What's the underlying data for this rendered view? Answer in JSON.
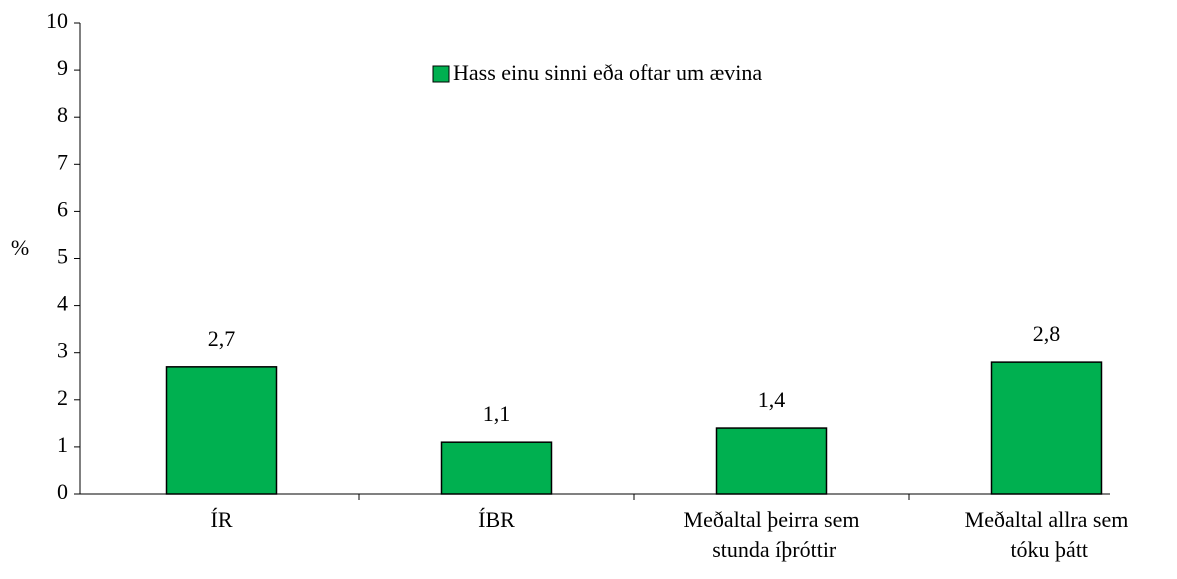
{
  "chart_data": {
    "type": "bar",
    "legend_label": "Hass einu sinni eða oftar um ævina",
    "y_label": "%",
    "categories": [
      "ÍR",
      "ÍBR",
      "Meðaltal þeirra sem stunda íþróttir",
      "Meðaltal allra sem tóku þátt"
    ],
    "values": [
      2.7,
      1.1,
      1.4,
      2.8
    ],
    "value_labels": [
      "2,7",
      "1,1",
      "1,4",
      "2,8"
    ],
    "color": "#00b050",
    "ylim": [
      0,
      10
    ],
    "yticks": [
      0,
      1,
      2,
      3,
      4,
      5,
      6,
      7,
      8,
      9,
      10
    ],
    "grid": false
  }
}
